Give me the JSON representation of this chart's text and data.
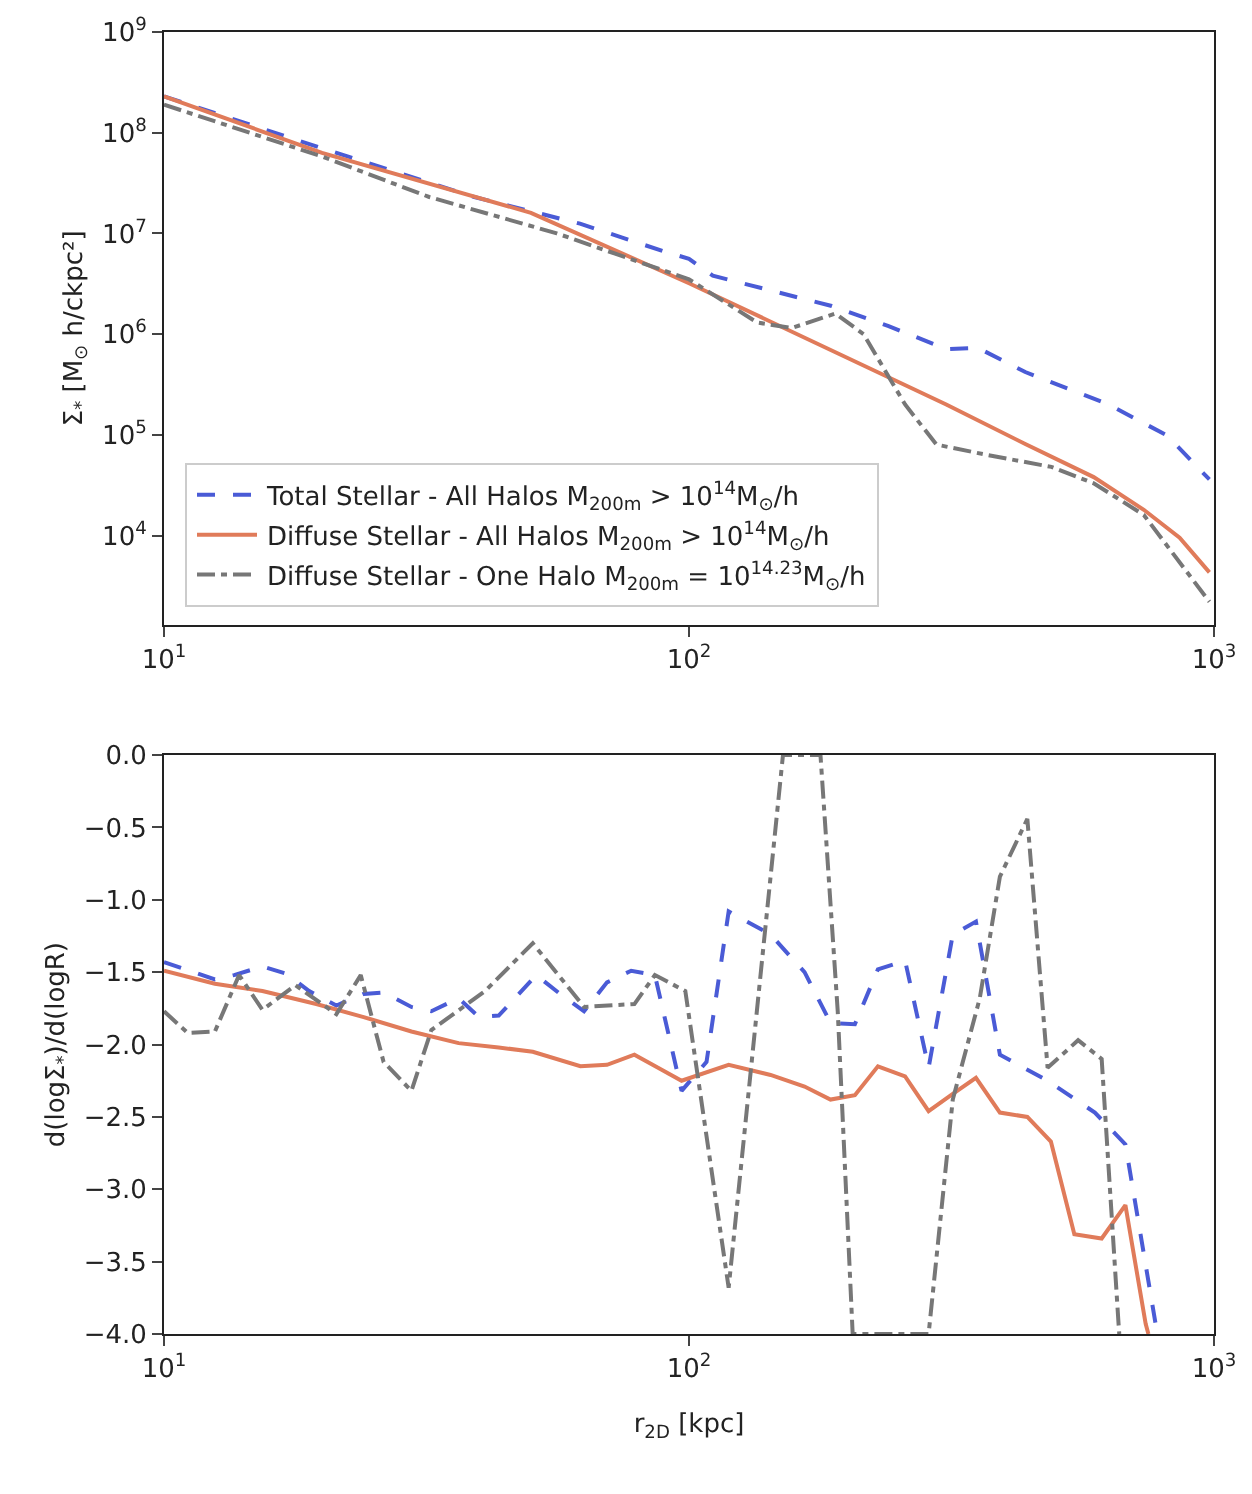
{
  "chart_data": [
    {
      "type": "line",
      "ylabel": "Σ$_{*}$ [M$_{⊙}$ h/ckpc²]",
      "log": "xy",
      "legend": "bottom left",
      "marker": "none",
      "xlim": [
        10,
        1000
      ],
      "xticks": [
        {
          "value": 10,
          "label": "10$^{1}$"
        },
        {
          "value": 100,
          "label": "10$^{2}$"
        },
        {
          "value": 1000,
          "label": "10$^{3}$"
        }
      ],
      "ylim": [
        1300,
        1000000000
      ],
      "yticks": [
        {
          "value": 10000,
          "label": "10$^{4}$"
        },
        {
          "value": 100000,
          "label": "10$^{5}$"
        },
        {
          "value": 1000000,
          "label": "10$^{6}$"
        },
        {
          "value": 10000000,
          "label": "10$^{7}$"
        },
        {
          "value": 100000000,
          "label": "10$^{8}$"
        },
        {
          "value": 1000000000,
          "label": "10$^{9}$"
        }
      ],
      "series": [
        {
          "name": "Total Stellar - All Halos M$_{200m}$ > 10$^{14}$M$_{⊙}$/h",
          "color": "#4a5bd6",
          "line_style": "dashed",
          "x": [
            10,
            20,
            39,
            62,
            89,
            100,
            111,
            187,
            240,
            309,
            355,
            437,
            630,
            815,
            980
          ],
          "values": [
            230000000,
            70000000,
            23000000,
            12500000,
            6700000,
            5600000,
            3800000,
            1900000,
            1200000,
            710000,
            730000,
            420000,
            200000,
            98000,
            36000
          ]
        },
        {
          "name": "Diffuse Stellar - All Halos M$_{200m}$ > 10$^{14}$M$_{⊙}$/h",
          "color": "#e07b5a",
          "line_style": "solid",
          "x": [
            10,
            20,
            50,
            100,
            309,
            437,
            590,
            735,
            860,
            980
          ],
          "values": [
            230000000,
            63000000,
            16000000,
            3200000,
            200000,
            81000,
            38000,
            18000,
            9500,
            4300
          ]
        },
        {
          "name": "Diffuse Stellar - One Halo M$_{200m}$ = 10$^{14.23}$M$_{⊙}$/h",
          "color": "#777777",
          "line_style": "dashdot",
          "x": [
            10,
            20,
            32,
            56,
            100,
            135,
            157,
            190,
            215,
            258,
            296,
            370,
            490,
            590,
            735,
            980
          ],
          "values": [
            190000000,
            58000000,
            23000000,
            10000000,
            3500000,
            1300000,
            1150000,
            1600000,
            1000000,
            200000,
            80000,
            63000,
            48000,
            33000,
            16000,
            2200
          ]
        }
      ]
    },
    {
      "type": "line",
      "xlabel": "r$_{2D}$ [kpc]",
      "ylabel": "d(logΣ$_{*}$)/d(logR)",
      "log": "x",
      "legend": false,
      "marker": "none",
      "xlim": [
        10,
        1000
      ],
      "xticks": [
        {
          "value": 10,
          "label": "10$^{1}$"
        },
        {
          "value": 100,
          "label": "10$^{2}$"
        },
        {
          "value": 1000,
          "label": "10$^{3}$"
        }
      ],
      "ylim": [
        -4.0,
        0.0
      ],
      "yticks": [
        {
          "value": -4.0,
          "label": "−4.0"
        },
        {
          "value": -3.5,
          "label": "−3.5"
        },
        {
          "value": -3.0,
          "label": "−3.0"
        },
        {
          "value": -2.5,
          "label": "−2.5"
        },
        {
          "value": -2.0,
          "label": "−2.0"
        },
        {
          "value": -1.5,
          "label": "−1.5"
        },
        {
          "value": -1.0,
          "label": "−1.0"
        },
        {
          "value": -0.5,
          "label": "−0.5"
        },
        {
          "value": 0.0,
          "label": "0.0"
        }
      ],
      "series": [
        {
          "color": "#4a5bd6",
          "line_style": "dashed",
          "x": [
            10,
            12.5,
            13.6,
            15.4,
            17.1,
            18.9,
            21.3,
            24.0,
            26.2,
            29.6,
            32.3,
            36.4,
            39.8,
            43.4,
            51.2,
            56.8,
            63.1,
            69.8,
            77.6,
            86.1,
            96.8,
            108,
            119,
            143,
            166,
            186,
            207,
            229,
            258,
            286,
            318,
            352,
            391,
            482,
            593,
            678,
            774,
            790
          ],
          "values": [
            -1.43,
            -1.55,
            -1.52,
            -1.46,
            -1.51,
            -1.63,
            -1.73,
            -1.65,
            -1.64,
            -1.74,
            -1.77,
            -1.68,
            -1.81,
            -1.8,
            -1.52,
            -1.65,
            -1.77,
            -1.57,
            -1.49,
            -1.52,
            -2.32,
            -2.12,
            -1.08,
            -1.24,
            -1.5,
            -1.85,
            -1.86,
            -1.48,
            -1.42,
            -2.16,
            -1.24,
            -1.15,
            -2.07,
            -2.25,
            -2.47,
            -2.69,
            -3.93,
            -4.0
          ]
        },
        {
          "color": "#e07b5a",
          "line_style": "solid",
          "x": [
            10,
            12.5,
            15.4,
            19.5,
            24.0,
            29.6,
            36.4,
            43.4,
            50.4,
            62.1,
            69.8,
            78.7,
            87.3,
            96.8,
            119,
            143,
            166,
            186,
            207,
            229,
            258,
            286,
            318,
            352,
            391,
            441,
            489,
            542,
            611,
            678,
            741,
            750
          ],
          "values": [
            -1.49,
            -1.58,
            -1.63,
            -1.72,
            -1.81,
            -1.91,
            -1.99,
            -2.02,
            -2.05,
            -2.15,
            -2.14,
            -2.07,
            -2.16,
            -2.25,
            -2.14,
            -2.21,
            -2.29,
            -2.38,
            -2.35,
            -2.15,
            -2.22,
            -2.46,
            -2.34,
            -2.23,
            -2.47,
            -2.5,
            -2.67,
            -3.31,
            -3.34,
            -3.11,
            -3.93,
            -4.0
          ]
        },
        {
          "color": "#777777",
          "line_style": "dashdot",
          "x": [
            10,
            11.1,
            12.5,
            13.9,
            15.4,
            17.8,
            21.3,
            23.7,
            26.2,
            29.6,
            32.3,
            40.9,
            50.4,
            63.1,
            78.7,
            86.1,
            98.4,
            119,
            151,
            178,
            192,
            205,
            286,
            318,
            358,
            391,
            441,
            482,
            551,
            611,
            658,
            660
          ],
          "values": [
            -1.77,
            -1.92,
            -1.91,
            -1.52,
            -1.76,
            -1.59,
            -1.79,
            -1.52,
            -2.12,
            -2.32,
            -1.9,
            -1.63,
            -1.3,
            -1.74,
            -1.72,
            -1.52,
            -1.63,
            -3.68,
            0.0,
            0.0,
            -1.77,
            -4.0,
            -4.0,
            -2.38,
            -1.68,
            -0.84,
            -0.44,
            -2.16,
            -1.97,
            -2.1,
            -3.93,
            -4.0
          ]
        }
      ]
    }
  ]
}
